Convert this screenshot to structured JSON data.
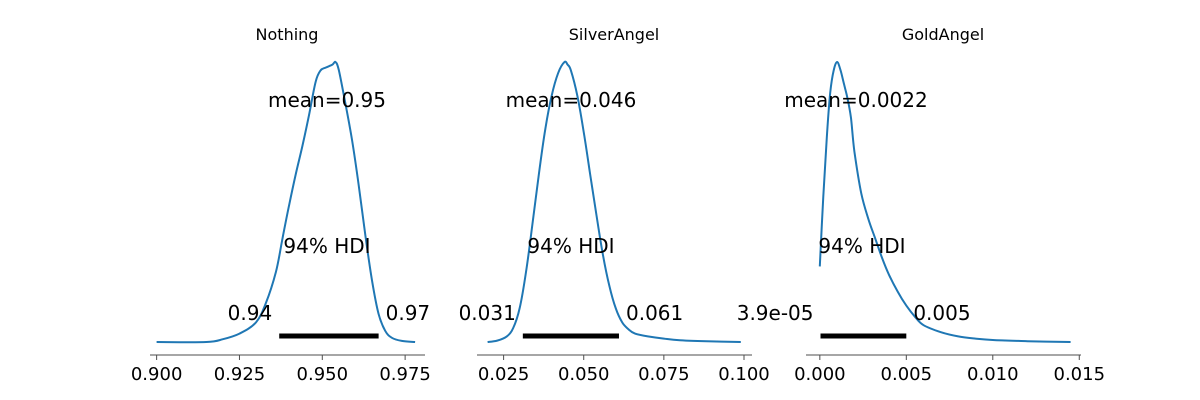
{
  "chart_data": [
    {
      "type": "line",
      "title": "Nothing",
      "mean_label": "mean=0.95",
      "hdi_label": "94% HDI",
      "hdi": {
        "low": 0.937,
        "high": 0.967,
        "low_label": "0.94",
        "high_label": "0.97"
      },
      "xlim": [
        0.898,
        0.981
      ],
      "xticks": [
        0.9,
        0.925,
        0.95,
        0.975
      ],
      "xtick_labels": [
        "0.900",
        "0.925",
        "0.950",
        "0.975"
      ],
      "density": {
        "x": [
          0.9,
          0.915,
          0.92,
          0.925,
          0.93,
          0.933,
          0.936,
          0.938,
          0.94,
          0.942,
          0.944,
          0.946,
          0.948,
          0.9495,
          0.951,
          0.953,
          0.954,
          0.955,
          0.957,
          0.959,
          0.961,
          0.963,
          0.965,
          0.967,
          0.969,
          0.971,
          0.974,
          0.978
        ],
        "y": [
          0.0,
          0.0,
          0.01,
          0.03,
          0.07,
          0.14,
          0.25,
          0.37,
          0.49,
          0.6,
          0.7,
          0.81,
          0.93,
          0.97,
          0.98,
          0.99,
          1.0,
          0.97,
          0.85,
          0.72,
          0.56,
          0.38,
          0.22,
          0.1,
          0.04,
          0.015,
          0.004,
          0.0
        ]
      }
    },
    {
      "type": "line",
      "title": "SilverAngel",
      "mean_label": "mean=0.046",
      "hdi_label": "94% HDI",
      "hdi": {
        "low": 0.031,
        "high": 0.061,
        "low_label": "0.031",
        "high_label": "0.061"
      },
      "xlim": [
        0.0167,
        0.1025
      ],
      "xticks": [
        0.025,
        0.05,
        0.075,
        0.1
      ],
      "xtick_labels": [
        "0.025",
        "0.050",
        "0.075",
        "0.100"
      ],
      "density": {
        "x": [
          0.02,
          0.023,
          0.026,
          0.028,
          0.03,
          0.032,
          0.034,
          0.036,
          0.038,
          0.04,
          0.042,
          0.044,
          0.045,
          0.046,
          0.048,
          0.05,
          0.052,
          0.054,
          0.056,
          0.058,
          0.06,
          0.062,
          0.064,
          0.066,
          0.07,
          0.075,
          0.08,
          0.09,
          0.099
        ],
        "y": [
          0.0,
          0.005,
          0.02,
          0.05,
          0.12,
          0.25,
          0.42,
          0.6,
          0.76,
          0.88,
          0.96,
          1.0,
          0.99,
          0.97,
          0.88,
          0.75,
          0.6,
          0.45,
          0.31,
          0.2,
          0.12,
          0.07,
          0.045,
          0.03,
          0.02,
          0.012,
          0.006,
          0.002,
          0.0
        ]
      }
    },
    {
      "type": "line",
      "title": "GoldAngel",
      "mean_label": "mean=0.0022",
      "hdi_label": "94% HDI",
      "hdi": {
        "low": 3.9e-05,
        "high": 0.005,
        "low_label": "3.9e-05",
        "high_label": "0.005"
      },
      "xlim": [
        -0.0008,
        0.0151
      ],
      "xticks": [
        0.0,
        0.005,
        0.01,
        0.015
      ],
      "xtick_labels": [
        "0.000",
        "0.005",
        "0.010",
        "0.015"
      ],
      "density": {
        "x": [
          0.0,
          0.0002,
          0.0004,
          0.0006,
          0.0008,
          0.001,
          0.0012,
          0.0014,
          0.0016,
          0.0018,
          0.002,
          0.0024,
          0.0028,
          0.0032,
          0.0036,
          0.004,
          0.0045,
          0.005,
          0.0055,
          0.006,
          0.007,
          0.008,
          0.009,
          0.01,
          0.012,
          0.0145
        ],
        "y": [
          0.27,
          0.52,
          0.73,
          0.89,
          0.97,
          1.0,
          0.97,
          0.92,
          0.87,
          0.8,
          0.68,
          0.53,
          0.44,
          0.37,
          0.3,
          0.24,
          0.18,
          0.13,
          0.09,
          0.06,
          0.035,
          0.02,
          0.012,
          0.007,
          0.003,
          0.0
        ]
      }
    }
  ]
}
